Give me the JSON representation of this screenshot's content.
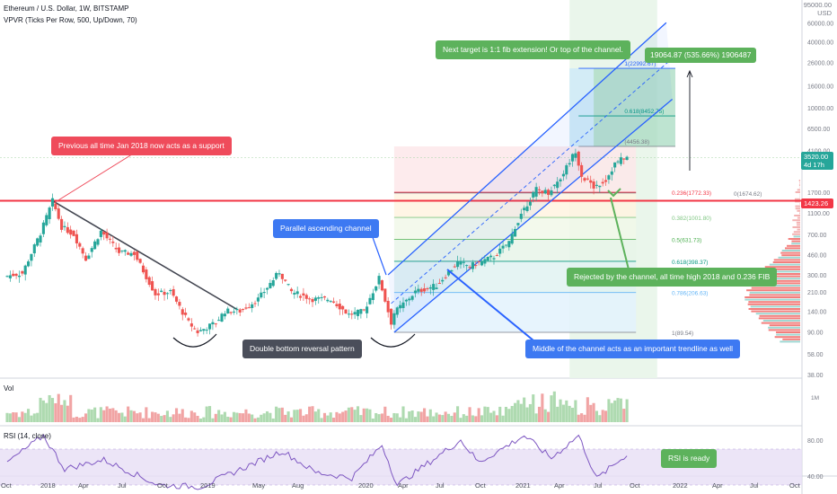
{
  "header": {
    "title": "Ethereum / U.S. Dollar, 1W, BITSTAMP",
    "indicator": "VPVR (Ticks Per Row, 500, Up/Down, 70)",
    "vol_label": "Vol",
    "rsi_label": "RSI (14, close)",
    "price_unit": "USD",
    "top_tick": "95000.00"
  },
  "price_tags": {
    "current": "3520.00",
    "countdown": "4d 17h",
    "support": "1423.26"
  },
  "callouts": {
    "support": "Previous all time Jan 2018 now acts as a support",
    "channel": "Parallel ascending channel",
    "double_bottom": "Double bottom reversal pattern",
    "middle": "Middle of the channel acts as an important trendline as well",
    "rejected": "Rejected by the channel, all time high 2018 and 0.236 FIB",
    "target": "Next target is 1:1 fib extension! Or top of the channel.",
    "measure": "19064.87 (535.66%) 1906487",
    "rsi": "RSI is ready"
  },
  "colors": {
    "up": "#26a69a",
    "down": "#ef5350",
    "channel": "#2962ff",
    "support_line": "#f23645",
    "trendline": "#434651",
    "rsi_line": "#7e57c2",
    "rsi_band": "#e7dff5"
  },
  "chart_data": {
    "type": "candlestick",
    "symbol": "ETHUSD",
    "interval": "1W",
    "y_scale": "log",
    "y_ticks": [
      "60000.00",
      "40000.00",
      "26000.00",
      "16000.00",
      "10000.00",
      "6500.00",
      "4100.00",
      "1700.00",
      "1100.00",
      "700.00",
      "460.00",
      "300.00",
      "210.00",
      "140.00",
      "90.00",
      "58.00",
      "38.00"
    ],
    "x_ticks": [
      "Oct",
      "2018",
      "Apr",
      "Jul",
      "Oct",
      "2019",
      "May",
      "Aug",
      "2020",
      "Apr",
      "Jul",
      "Oct",
      "2021",
      "Apr",
      "Jul",
      "Oct",
      "2022",
      "Apr",
      "Jul",
      "Oct"
    ],
    "price_path": [
      [
        "2017-09-25",
        290
      ],
      [
        "2017-11-06",
        310
      ],
      [
        "2017-12-18",
        720
      ],
      [
        "2018-01-15",
        1420
      ],
      [
        "2018-02-05",
        820
      ],
      [
        "2018-03-05",
        700
      ],
      [
        "2018-04-02",
        420
      ],
      [
        "2018-05-07",
        750
      ],
      [
        "2018-06-18",
        480
      ],
      [
        "2018-07-23",
        470
      ],
      [
        "2018-09-10",
        200
      ],
      [
        "2018-10-15",
        210
      ],
      [
        "2018-11-26",
        110
      ],
      [
        "2018-12-17",
        90
      ],
      [
        "2019-01-28",
        110
      ],
      [
        "2019-02-18",
        140
      ],
      [
        "2019-03-25",
        140
      ],
      [
        "2019-05-06",
        180
      ],
      [
        "2019-06-24",
        320
      ],
      [
        "2019-07-22",
        210
      ],
      [
        "2019-09-09",
        180
      ],
      [
        "2019-10-21",
        180
      ],
      [
        "2019-12-02",
        130
      ],
      [
        "2020-01-06",
        140
      ],
      [
        "2020-02-10",
        280
      ],
      [
        "2020-03-09",
        110
      ],
      [
        "2020-03-16",
        135
      ],
      [
        "2020-05-04",
        210
      ],
      [
        "2020-06-22",
        240
      ],
      [
        "2020-08-10",
        390
      ],
      [
        "2020-09-07",
        360
      ],
      [
        "2020-11-02",
        440
      ],
      [
        "2020-12-07",
        600
      ],
      [
        "2021-01-04",
        1100
      ],
      [
        "2021-02-08",
        1800
      ],
      [
        "2021-03-08",
        1700
      ],
      [
        "2021-04-05",
        2300
      ],
      [
        "2021-05-10",
        4100
      ],
      [
        "2021-05-24",
        2400
      ],
      [
        "2021-06-21",
        1900
      ],
      [
        "2021-07-19",
        2200
      ],
      [
        "2021-08-09",
        3100
      ],
      [
        "2021-08-30",
        3520
      ]
    ],
    "fib_levels": [
      {
        "ratio": "0",
        "value": 1674.62
      },
      {
        "ratio": "0.236",
        "value": 1772.33
      },
      {
        "ratio": "0.382",
        "value": 1001.8
      },
      {
        "ratio": "0.5",
        "value": 631.73
      },
      {
        "ratio": "0.618",
        "value": 398.37
      },
      {
        "ratio": "0.786",
        "value": 206.63
      },
      {
        "ratio": "1",
        "value": 89.54
      }
    ],
    "fib_extensions": [
      {
        "ratio": "0.618",
        "value": 8452.75
      },
      {
        "ratio": "1",
        "value": 22992.67
      },
      {
        "ratio": "",
        "value": 4456.38
      }
    ],
    "support_level": 1423.26,
    "rsi_ticks": [
      "80.00",
      "40.00"
    ],
    "rsi_path": [
      [
        "2017-09-25",
        55
      ],
      [
        "2017-12-18",
        85
      ],
      [
        "2018-02-05",
        48
      ],
      [
        "2018-05-07",
        58
      ],
      [
        "2018-09-10",
        30
      ],
      [
        "2018-12-17",
        28
      ],
      [
        "2019-06-24",
        68
      ],
      [
        "2019-09-09",
        44
      ],
      [
        "2019-12-02",
        38
      ],
      [
        "2020-02-10",
        75
      ],
      [
        "2020-03-16",
        30
      ],
      [
        "2020-08-10",
        80
      ],
      [
        "2020-09-21",
        55
      ],
      [
        "2021-01-04",
        85
      ],
      [
        "2021-03-08",
        60
      ],
      [
        "2021-05-10",
        85
      ],
      [
        "2021-06-21",
        37
      ],
      [
        "2021-08-30",
        64
      ]
    ]
  }
}
